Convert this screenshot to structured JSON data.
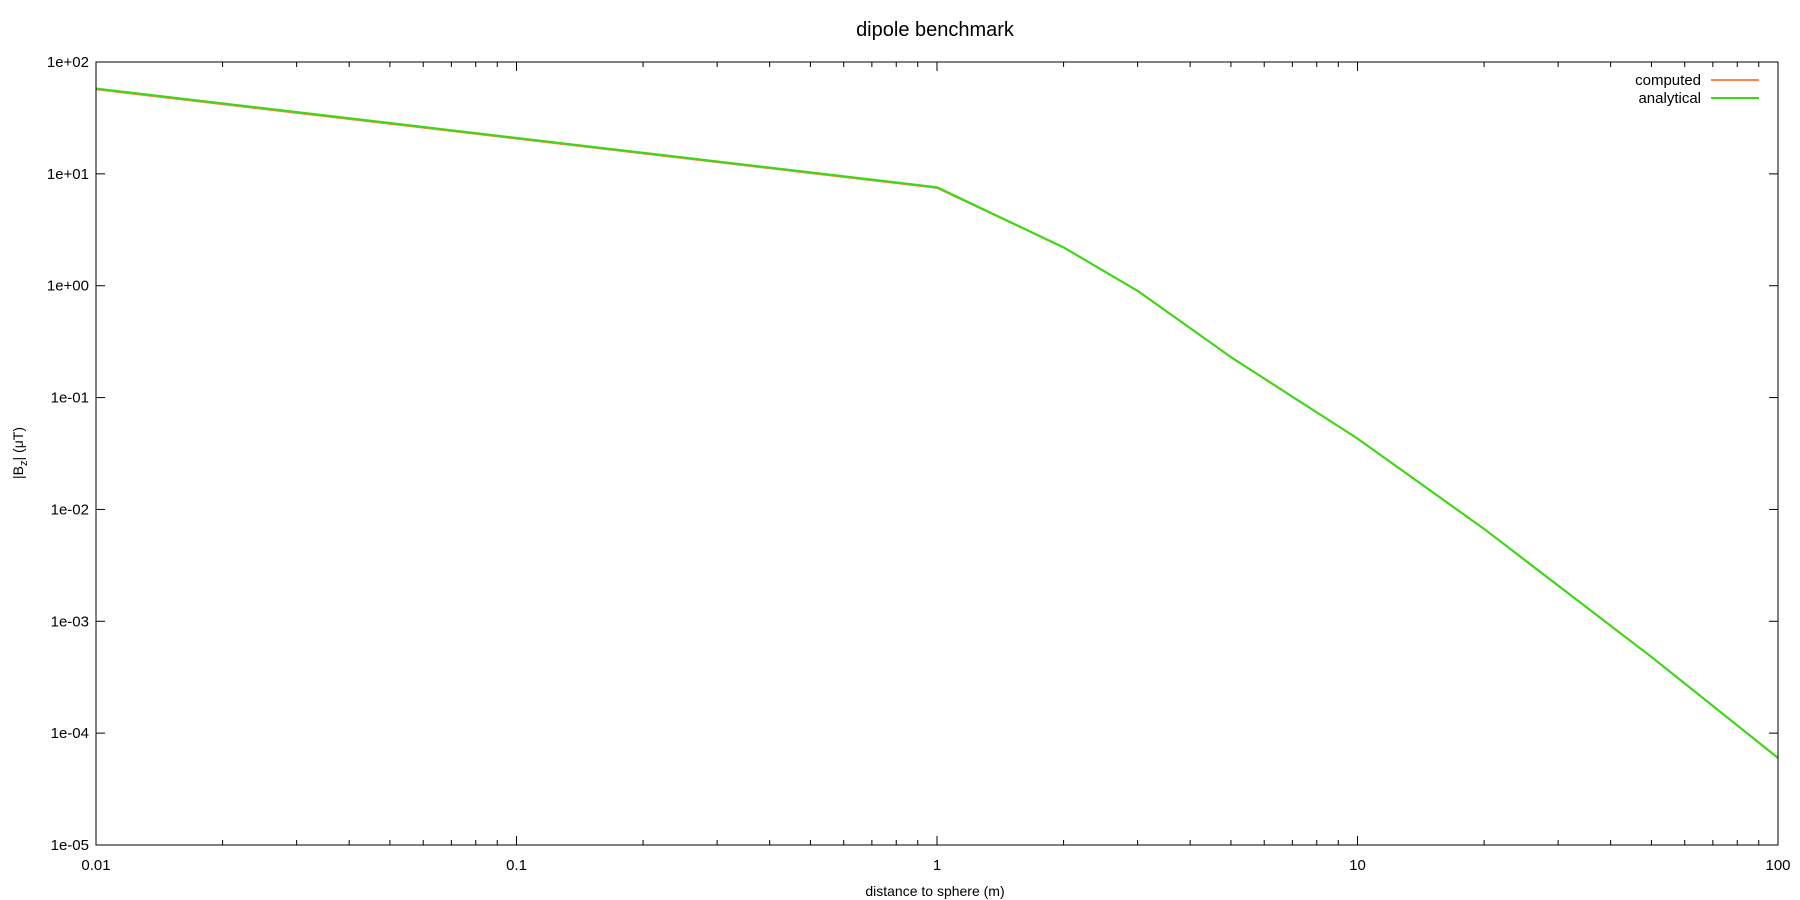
{
  "chart_data": {
    "type": "line",
    "title": "dipole benchmark",
    "xlabel": "distance to sphere (m)",
    "ylabel": {
      "prefix": "|B",
      "subscript": "z",
      "suffix": "| (μT)"
    },
    "xscale": "log",
    "yscale": "log",
    "xlim": [
      0.01,
      100
    ],
    "ylim": [
      1e-05,
      100
    ],
    "xticks": [
      {
        "value": 0.01,
        "label": "0.01"
      },
      {
        "value": 0.1,
        "label": "0.1"
      },
      {
        "value": 1,
        "label": "1"
      },
      {
        "value": 10,
        "label": "10"
      },
      {
        "value": 100,
        "label": "100"
      }
    ],
    "yticks": [
      {
        "value": 100,
        "label": "1e+02"
      },
      {
        "value": 10,
        "label": "1e+01"
      },
      {
        "value": 1,
        "label": "1e+00"
      },
      {
        "value": 0.1,
        "label": "1e-01"
      },
      {
        "value": 0.01,
        "label": "1e-02"
      },
      {
        "value": 0.001,
        "label": "1e-03"
      },
      {
        "value": 0.0001,
        "label": "1e-04"
      },
      {
        "value": 1e-05,
        "label": "1e-05"
      }
    ],
    "grid": false,
    "legend_position": "top-right",
    "series": [
      {
        "name": "computed",
        "color": "#ff7f50",
        "x": [
          0.01,
          1,
          2,
          3,
          5,
          10,
          20,
          50,
          100
        ],
        "y": [
          57,
          7.5,
          2.2,
          0.9,
          0.23,
          0.043,
          0.0067,
          0.00048,
          6e-05
        ]
      },
      {
        "name": "analytical",
        "color": "#33dd11",
        "x": [
          0.01,
          1,
          2,
          3,
          5,
          10,
          20,
          50,
          100
        ],
        "y": [
          58,
          7.6,
          2.2,
          0.9,
          0.23,
          0.043,
          0.0067,
          0.00048,
          6e-05
        ]
      }
    ]
  }
}
